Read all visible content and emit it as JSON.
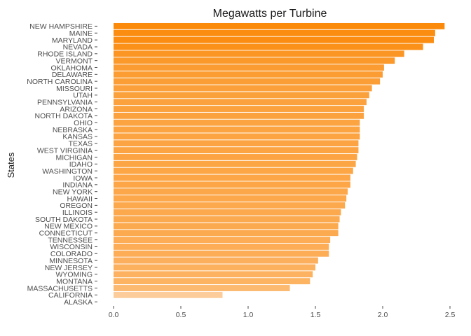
{
  "chart_data": {
    "type": "bar",
    "orientation": "horizontal",
    "title": "Megawatts per Turbine",
    "xlabel": "",
    "ylabel": "States",
    "xlim": [
      0,
      2.5
    ],
    "x_ticks": [
      "0.0",
      "0.5",
      "1.0",
      "1.5",
      "2.0",
      "2.5"
    ],
    "grid": false,
    "legend": "none",
    "color_low": "#fdeee2",
    "color_high": "#fb8a0b",
    "categories": [
      "NEW HAMPSHIRE",
      "MAINE",
      "MARYLAND",
      "NEVADA",
      "RHODE ISLAND",
      "VERMONT",
      "OKLAHOMA",
      "DELAWARE",
      "NORTH CAROLINA",
      "MISSOURI",
      "UTAH",
      "PENNSYLVANIA",
      "ARIZONA",
      "NORTH DAKOTA",
      "OHIO",
      "NEBRASKA",
      "KANSAS",
      "TEXAS",
      "WEST VIRGINIA",
      "MICHIGAN",
      "IDAHO",
      "WASHINGTON",
      "IOWA",
      "INDIANA",
      "NEW YORK",
      "HAWAII",
      "OREGON",
      "ILLINOIS",
      "SOUTH DAKOTA",
      "NEW MEXICO",
      "CONNECTICUT",
      "TENNESSEE",
      "WISCONSIN",
      "COLORADO",
      "MINNESOTA",
      "NEW JERSEY",
      "WYOMING",
      "MONTANA",
      "MASSACHUSETTS",
      "CALIFORNIA",
      "ALASKA"
    ],
    "values": [
      2.46,
      2.39,
      2.38,
      2.3,
      2.16,
      2.09,
      2.01,
      2.0,
      1.98,
      1.92,
      1.9,
      1.88,
      1.86,
      1.86,
      1.83,
      1.83,
      1.83,
      1.82,
      1.82,
      1.81,
      1.8,
      1.78,
      1.76,
      1.76,
      1.74,
      1.73,
      1.72,
      1.69,
      1.68,
      1.67,
      1.67,
      1.61,
      1.6,
      1.6,
      1.52,
      1.5,
      1.48,
      1.46,
      1.31,
      0.81,
      0.0
    ]
  }
}
